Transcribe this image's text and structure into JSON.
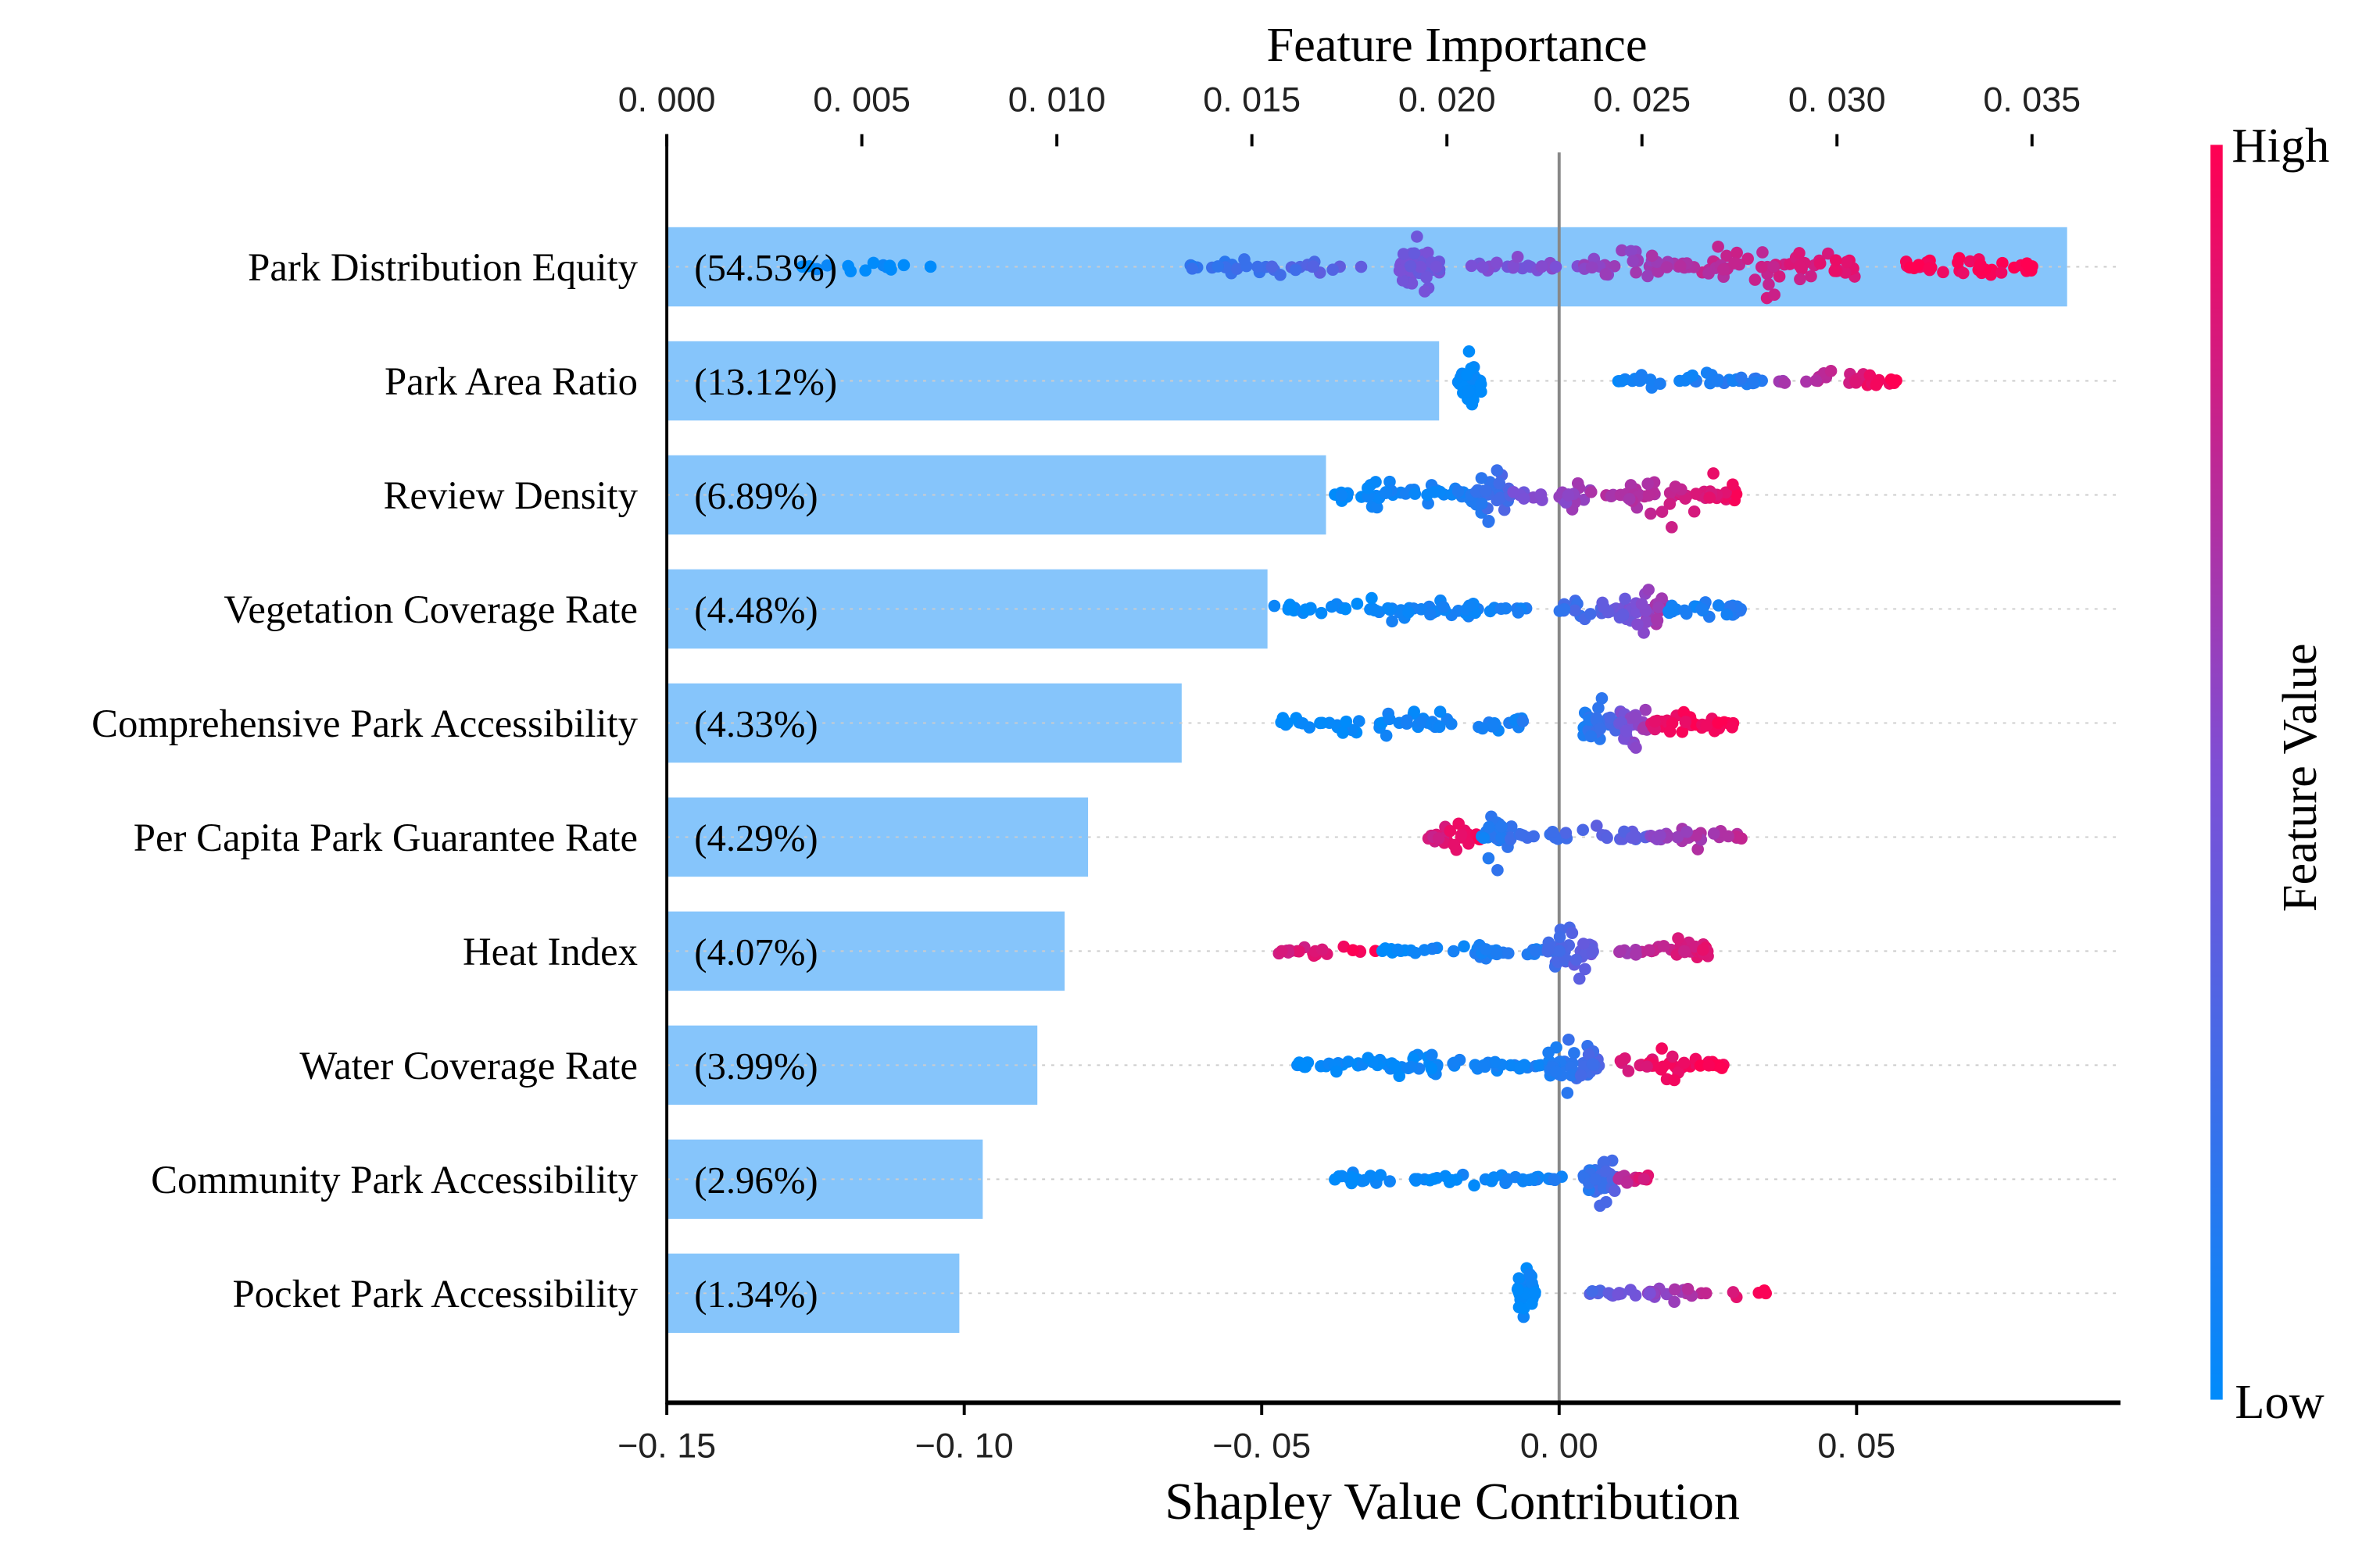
{
  "chart_data": {
    "type": "bar+beeswarm",
    "top_title": "Feature Importance",
    "xlabel": "Shapley Value Contribution",
    "colorbar_label": "Feature Value",
    "colorbar_high": "High",
    "colorbar_low": "Low",
    "colors": {
      "low": "#008bfb",
      "mid": "#7d4fd6",
      "high": "#ff0052",
      "bar": "#86c5fb"
    },
    "importance_axis": {
      "range": [
        0,
        0.0373
      ],
      "ticks": [
        0,
        0.005,
        0.01,
        0.015,
        0.02,
        0.025,
        0.03,
        0.035
      ],
      "tick_labels": [
        "0. 000",
        "0. 005",
        "0. 010",
        "0. 015",
        "0. 020",
        "0. 025",
        "0. 030",
        "0. 035"
      ]
    },
    "shap_axis": {
      "range": [
        -0.15,
        0.0944
      ],
      "ticks": [
        -0.15,
        -0.1,
        -0.05,
        0.0,
        0.05
      ],
      "tick_labels": [
        "−0. 15",
        "−0. 10",
        "−0. 05",
        "0. 00",
        "0. 05"
      ]
    },
    "features": [
      {
        "name": "Park Distribution Equity",
        "importance": 0.0359,
        "percent": "(54.53%)",
        "clusters": [
          [
            -0.13,
            -0.105,
            0,
            0,
            14,
            0.2
          ],
          [
            -0.065,
            -0.03,
            0.15,
            0.4,
            30,
            0.4
          ],
          [
            -0.027,
            -0.02,
            0.45,
            0.45,
            45,
            1.0
          ],
          [
            -0.015,
            0,
            0.5,
            0.5,
            20,
            0.5
          ],
          [
            0.003,
            0.02,
            0.55,
            0.65,
            30,
            0.5
          ],
          [
            0.02,
            0.05,
            0.7,
            0.9,
            60,
            0.9
          ],
          [
            0.058,
            0.08,
            0.95,
            1,
            40,
            0.5
          ]
        ]
      },
      {
        "name": "Park Area Ratio",
        "importance": 0.0198,
        "percent": "(13.12%)",
        "clusters": [
          [
            -0.017,
            -0.013,
            0,
            0,
            40,
            1.0
          ],
          [
            0.009,
            0.035,
            0.05,
            0.15,
            40,
            0.3
          ],
          [
            0.035,
            0.057,
            0.6,
            1,
            30,
            0.35
          ]
        ]
      },
      {
        "name": "Review Density",
        "importance": 0.0169,
        "percent": "(6.89%)",
        "clusters": [
          [
            -0.04,
            -0.015,
            0,
            0.1,
            40,
            0.6
          ],
          [
            -0.015,
            -0.008,
            0.15,
            0.3,
            40,
            1.0
          ],
          [
            -0.008,
            0.01,
            0.45,
            0.7,
            30,
            0.5
          ],
          [
            0.01,
            0.03,
            0.65,
            0.95,
            55,
            1.0
          ]
        ]
      },
      {
        "name": "Vegetation Coverage Rate",
        "importance": 0.0154,
        "percent": "(4.48%)",
        "clusters": [
          [
            -0.048,
            -0.005,
            0,
            0.1,
            60,
            0.4
          ],
          [
            0,
            0.01,
            0.2,
            0.4,
            20,
            0.4
          ],
          [
            0.01,
            0.018,
            0.4,
            0.7,
            40,
            1.0
          ],
          [
            0.018,
            0.031,
            0.05,
            0.15,
            30,
            0.4
          ]
        ]
      },
      {
        "name": "Comprehensive Park Accessibility",
        "importance": 0.0132,
        "percent": "(4.33%)",
        "clusters": [
          [
            -0.047,
            -0.005,
            0,
            0.1,
            60,
            0.5
          ],
          [
            0.003,
            0.01,
            0.1,
            0.3,
            30,
            0.9
          ],
          [
            0.01,
            0.015,
            0.45,
            0.65,
            30,
            1.0
          ],
          [
            0.015,
            0.03,
            0.9,
            1,
            35,
            0.5
          ]
        ]
      },
      {
        "name": "Per Capita Park Guarantee Rate",
        "importance": 0.0108,
        "percent": "(4.29%)",
        "clusters": [
          [
            -0.022,
            -0.013,
            0.8,
            1,
            30,
            0.5
          ],
          [
            -0.013,
            -0.008,
            0.1,
            0.2,
            30,
            1.0
          ],
          [
            -0.008,
            0.015,
            0.2,
            0.4,
            30,
            0.4
          ],
          [
            0.015,
            0.031,
            0.55,
            0.75,
            30,
            0.4
          ]
        ]
      },
      {
        "name": "Heat Index",
        "importance": 0.0102,
        "percent": "(4.07%)",
        "clusters": [
          [
            -0.048,
            -0.03,
            0.8,
            1,
            20,
            0.3
          ],
          [
            -0.03,
            -0.002,
            0,
            0.15,
            40,
            0.3
          ],
          [
            -0.002,
            0.007,
            0.25,
            0.45,
            40,
            1.0
          ],
          [
            0.01,
            0.025,
            0.65,
            0.9,
            35,
            0.6
          ]
        ]
      },
      {
        "name": "Water Coverage Rate",
        "importance": 0.0095,
        "percent": "(3.99%)",
        "clusters": [
          [
            -0.044,
            -0.035,
            0,
            0.05,
            15,
            0.4
          ],
          [
            -0.035,
            -0.002,
            0,
            0.1,
            50,
            0.5
          ],
          [
            -0.002,
            0.007,
            0.1,
            0.3,
            50,
            1.0
          ],
          [
            0.01,
            0.028,
            0.85,
            1,
            40,
            0.5
          ]
        ]
      },
      {
        "name": "Community Park Accessibility",
        "importance": 0.0081,
        "percent": "(2.96%)",
        "clusters": [
          [
            -0.039,
            -0.028,
            0,
            0.05,
            15,
            0.4
          ],
          [
            -0.025,
            0.002,
            0,
            0.1,
            40,
            0.3
          ],
          [
            0.004,
            0.01,
            0.15,
            0.35,
            35,
            1.0
          ],
          [
            0.01,
            0.015,
            0.7,
            0.9,
            15,
            0.4
          ]
        ]
      },
      {
        "name": "Pocket Park Accessibility",
        "importance": 0.0075,
        "percent": "(1.34%)",
        "clusters": [
          [
            -0.007,
            -0.004,
            0,
            0.05,
            30,
            1.0
          ],
          [
            0.005,
            0.035,
            0.3,
            1,
            40,
            0.3
          ]
        ]
      }
    ]
  }
}
